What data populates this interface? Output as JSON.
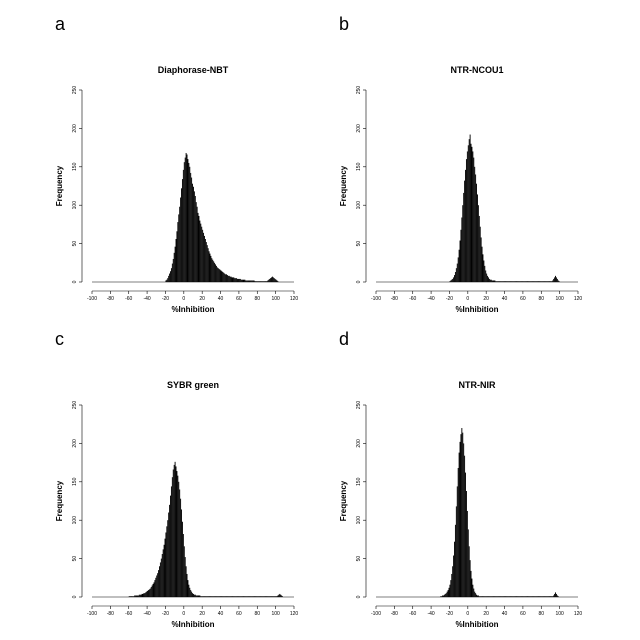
{
  "chart_data": [
    {
      "panel_label": "a",
      "type": "bar",
      "title": "Diaphorase-NBT",
      "xlabel": "%Inhibition",
      "ylabel": "Frequency",
      "xlim": [
        -100,
        120
      ],
      "ylim": [
        0,
        250
      ],
      "xticks": [
        "-100",
        "-80",
        "-60",
        "-40",
        "-20",
        "0",
        "20",
        "40",
        "60",
        "80",
        "100",
        "120"
      ],
      "yticks": [
        "0",
        "50",
        "100",
        "150",
        "200",
        "250"
      ],
      "grid": false,
      "bin_width": 1,
      "x_start": -20,
      "values": [
        2,
        3,
        5,
        8,
        11,
        14,
        18,
        24,
        30,
        38,
        46,
        56,
        66,
        78,
        88,
        98,
        110,
        122,
        134,
        146,
        156,
        162,
        168,
        166,
        160,
        155,
        150,
        142,
        136,
        128,
        124,
        118,
        112,
        104,
        98,
        90,
        86,
        80,
        76,
        72,
        68,
        64,
        60,
        56,
        52,
        48,
        44,
        40,
        37,
        34,
        31,
        29,
        27,
        25,
        23,
        21,
        19,
        18,
        17,
        16,
        15,
        14,
        13,
        12,
        11,
        10,
        10,
        9,
        8,
        8,
        7,
        7,
        6,
        6,
        6,
        5,
        5,
        5,
        4,
        4,
        4,
        4,
        3,
        3,
        3,
        3,
        3,
        2,
        2,
        2,
        2,
        2,
        2,
        2,
        2,
        2,
        2,
        1,
        1,
        1,
        1,
        1,
        1,
        1,
        1,
        1,
        1,
        1,
        1,
        1,
        1,
        2,
        3,
        4,
        5,
        6,
        7,
        6,
        5,
        4,
        3,
        2,
        1
      ]
    },
    {
      "panel_label": "b",
      "type": "bar",
      "title": "NTR-NCOU1",
      "xlabel": "%Inhibition",
      "ylabel": "Frequency",
      "xlim": [
        -100,
        120
      ],
      "ylim": [
        0,
        250
      ],
      "xticks": [
        "-100",
        "-80",
        "-60",
        "-40",
        "-20",
        "0",
        "20",
        "40",
        "60",
        "80",
        "100",
        "120"
      ],
      "yticks": [
        "0",
        "50",
        "100",
        "150",
        "200",
        "250"
      ],
      "grid": false,
      "bin_width": 1,
      "x_start": -20,
      "values": [
        1,
        2,
        3,
        4,
        6,
        9,
        13,
        18,
        24,
        32,
        42,
        54,
        68,
        84,
        100,
        116,
        132,
        146,
        160,
        170,
        178,
        186,
        192,
        180,
        176,
        170,
        162,
        150,
        140,
        128,
        114,
        100,
        86,
        72,
        58,
        46,
        36,
        28,
        21,
        15,
        11,
        8,
        6,
        4,
        3,
        3,
        2,
        2,
        2,
        2,
        1,
        1,
        1,
        1,
        1,
        1,
        1,
        1,
        1,
        1,
        1,
        1,
        1,
        1,
        1,
        1,
        1,
        1,
        1,
        1,
        1,
        1,
        1,
        1,
        1,
        1,
        1,
        1,
        1,
        1,
        1,
        1,
        1,
        1,
        1,
        1,
        1,
        1,
        1,
        1,
        1,
        1,
        1,
        1,
        1,
        1,
        1,
        1,
        1,
        1,
        1,
        1,
        1,
        1,
        1,
        1,
        1,
        1,
        1,
        1,
        1,
        1,
        2,
        4,
        6,
        8,
        6,
        4,
        2,
        1
      ]
    },
    {
      "panel_label": "c",
      "type": "bar",
      "title": "SYBR green",
      "xlabel": "%Inhibition",
      "ylabel": "Frequency",
      "xlim": [
        -100,
        120
      ],
      "ylim": [
        0,
        250
      ],
      "xticks": [
        "-100",
        "-80",
        "-60",
        "-40",
        "-20",
        "0",
        "20",
        "40",
        "60",
        "80",
        "100",
        "120"
      ],
      "yticks": [
        "0",
        "50",
        "100",
        "150",
        "200",
        "250"
      ],
      "grid": false,
      "bin_width": 1,
      "x_start": -60,
      "values": [
        1,
        1,
        1,
        1,
        1,
        1,
        2,
        2,
        2,
        2,
        2,
        3,
        3,
        3,
        4,
        4,
        5,
        5,
        6,
        7,
        8,
        9,
        10,
        11,
        13,
        15,
        17,
        19,
        22,
        25,
        28,
        31,
        35,
        40,
        45,
        50,
        56,
        62,
        68,
        76,
        84,
        92,
        100,
        110,
        120,
        132,
        144,
        156,
        166,
        172,
        176,
        170,
        164,
        158,
        150,
        140,
        128,
        114,
        98,
        82,
        66,
        52,
        40,
        30,
        22,
        16,
        12,
        9,
        7,
        5,
        4,
        3,
        3,
        2,
        2,
        2,
        2,
        2,
        1,
        1,
        1,
        1,
        1,
        1,
        1,
        1,
        1,
        1,
        1,
        1,
        1,
        1,
        1,
        1,
        1,
        1,
        1,
        1,
        1,
        1,
        1,
        1,
        1,
        1,
        1,
        1,
        1,
        1,
        1,
        1,
        1,
        1,
        1,
        1,
        1,
        1,
        1,
        1,
        1,
        1,
        1,
        1,
        1,
        1,
        1,
        1,
        1,
        1,
        1,
        1,
        1,
        1,
        1,
        1,
        1,
        1,
        1,
        1,
        1,
        1,
        1,
        1,
        1,
        1,
        1,
        1,
        1,
        1,
        1,
        1,
        1,
        1,
        1,
        1,
        1,
        1,
        1,
        1,
        1,
        1,
        1,
        1,
        2,
        3,
        4,
        3,
        2,
        1
      ]
    },
    {
      "panel_label": "d",
      "type": "bar",
      "title": "NTR-NIR",
      "xlabel": "%Inhibition",
      "ylabel": "Frequency",
      "xlim": [
        -100,
        120
      ],
      "ylim": [
        0,
        250
      ],
      "xticks": [
        "-100",
        "-80",
        "-60",
        "-40",
        "-20",
        "0",
        "20",
        "40",
        "60",
        "80",
        "100",
        "120"
      ],
      "yticks": [
        "0",
        "50",
        "100",
        "150",
        "200",
        "250"
      ],
      "grid": false,
      "bin_width": 1,
      "x_start": -30,
      "values": [
        1,
        1,
        2,
        2,
        3,
        4,
        5,
        7,
        9,
        12,
        16,
        22,
        30,
        40,
        54,
        72,
        94,
        118,
        144,
        168,
        188,
        202,
        212,
        220,
        214,
        200,
        184,
        162,
        138,
        112,
        88,
        66,
        48,
        34,
        24,
        16,
        11,
        7,
        5,
        3,
        2,
        2,
        1,
        1,
        1,
        1,
        1,
        1,
        1,
        1,
        1,
        1,
        1,
        1,
        1,
        1,
        1,
        1,
        1,
        1,
        1,
        1,
        1,
        1,
        1,
        1,
        1,
        1,
        1,
        1,
        1,
        1,
        1,
        1,
        1,
        1,
        1,
        1,
        1,
        1,
        1,
        1,
        1,
        1,
        1,
        1,
        1,
        1,
        1,
        1,
        1,
        1,
        1,
        1,
        1,
        1,
        1,
        1,
        1,
        1,
        1,
        1,
        1,
        1,
        1,
        1,
        1,
        1,
        1,
        1,
        1,
        1,
        1,
        1,
        1,
        1,
        1,
        1,
        1,
        1,
        1,
        1,
        1,
        2,
        4,
        6,
        4,
        2,
        1
      ]
    }
  ]
}
